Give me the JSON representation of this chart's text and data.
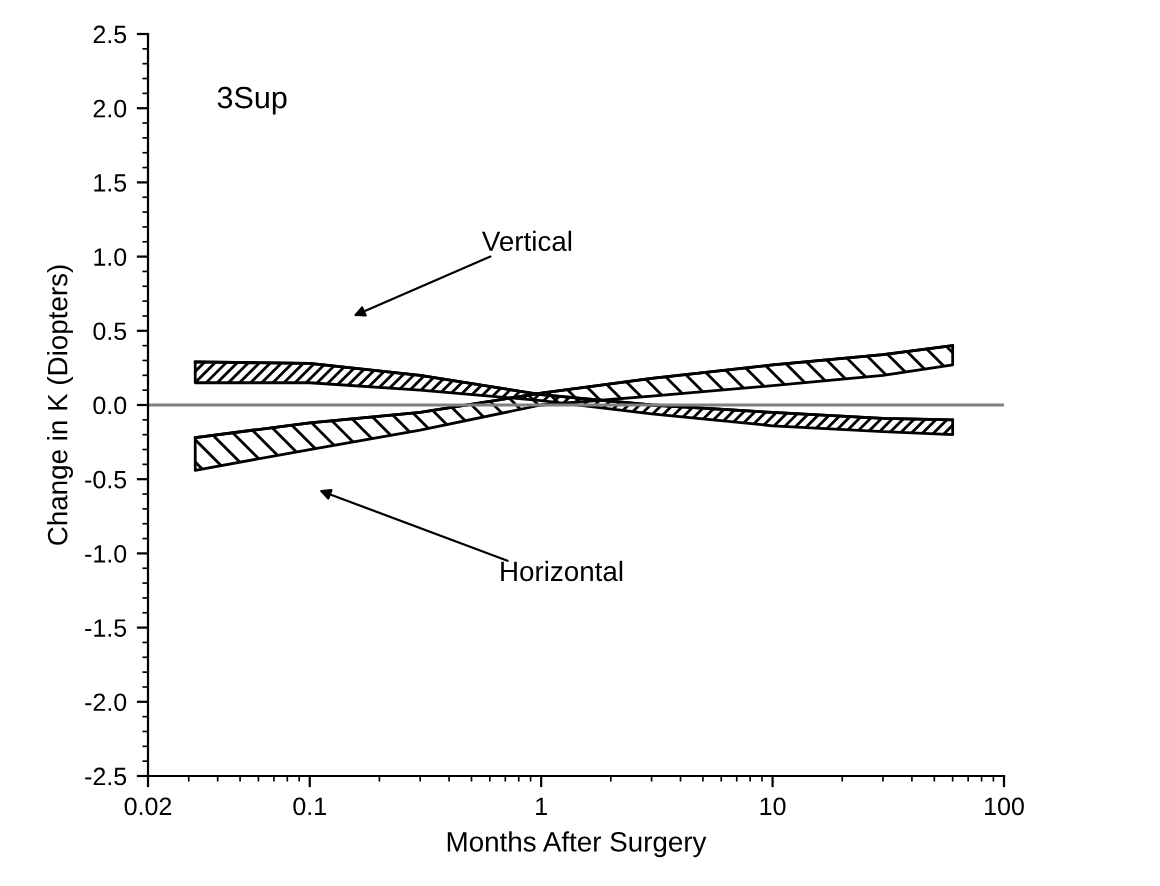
{
  "chart_data": {
    "type": "line",
    "xlabel": "Months After Surgery",
    "ylabel": "Change in K (Diopters)",
    "log": "x",
    "xlim": [
      0.02,
      100
    ],
    "xticks": [
      0.02,
      0.1,
      1,
      10,
      100
    ],
    "ylim": [
      -2.5,
      2.5
    ],
    "yticks": [
      {
        "value": -2.5,
        "label": "-2.5"
      },
      {
        "value": -2,
        "label": "-2.0"
      },
      {
        "value": -1.5,
        "label": "-1.5"
      },
      {
        "value": -1,
        "label": "-1.0"
      },
      {
        "value": -0.5,
        "label": "-0.5"
      },
      {
        "value": 0,
        "label": "0.0"
      },
      {
        "value": 0.5,
        "label": "0.5"
      },
      {
        "value": 1,
        "label": "1.0"
      },
      {
        "value": 1.5,
        "label": "1.5"
      },
      {
        "value": 2,
        "label": "2.0"
      },
      {
        "value": 2.5,
        "label": "2.5"
      }
    ],
    "grid": false,
    "legend": false,
    "series": [
      {
        "color": "#000000",
        "x": [
          0.032,
          0.1,
          0.3,
          1,
          3,
          10,
          30,
          60
        ],
        "values": [
          0.29,
          0.28,
          0.2,
          0.07,
          0.0,
          -0.05,
          -0.09,
          -0.1
        ],
        "lower": [
          0.15,
          0.15,
          0.1,
          0.03,
          -0.06,
          -0.14,
          -0.18,
          -0.2
        ],
        "upper": [
          0.29,
          0.28,
          0.2,
          0.07,
          0.0,
          -0.05,
          -0.09,
          -0.1
        ]
      },
      {
        "color": "#000000",
        "x": [
          0.032,
          0.1,
          0.3,
          1,
          3,
          10,
          30,
          60
        ],
        "values": [
          -0.22,
          -0.12,
          -0.05,
          0.08,
          0.18,
          0.27,
          0.34,
          0.4
        ],
        "lower": [
          -0.44,
          -0.3,
          -0.17,
          0.0,
          0.06,
          0.13,
          0.2,
          0.27
        ],
        "upper": [
          -0.22,
          -0.12,
          -0.05,
          0.08,
          0.18,
          0.27,
          0.34,
          0.4
        ]
      }
    ],
    "ref_lines": [
      {
        "axis": "y",
        "value": 0,
        "color": "#808080"
      }
    ],
    "annotations": [
      "3Sup",
      "Vertical",
      "Horizontal"
    ]
  }
}
